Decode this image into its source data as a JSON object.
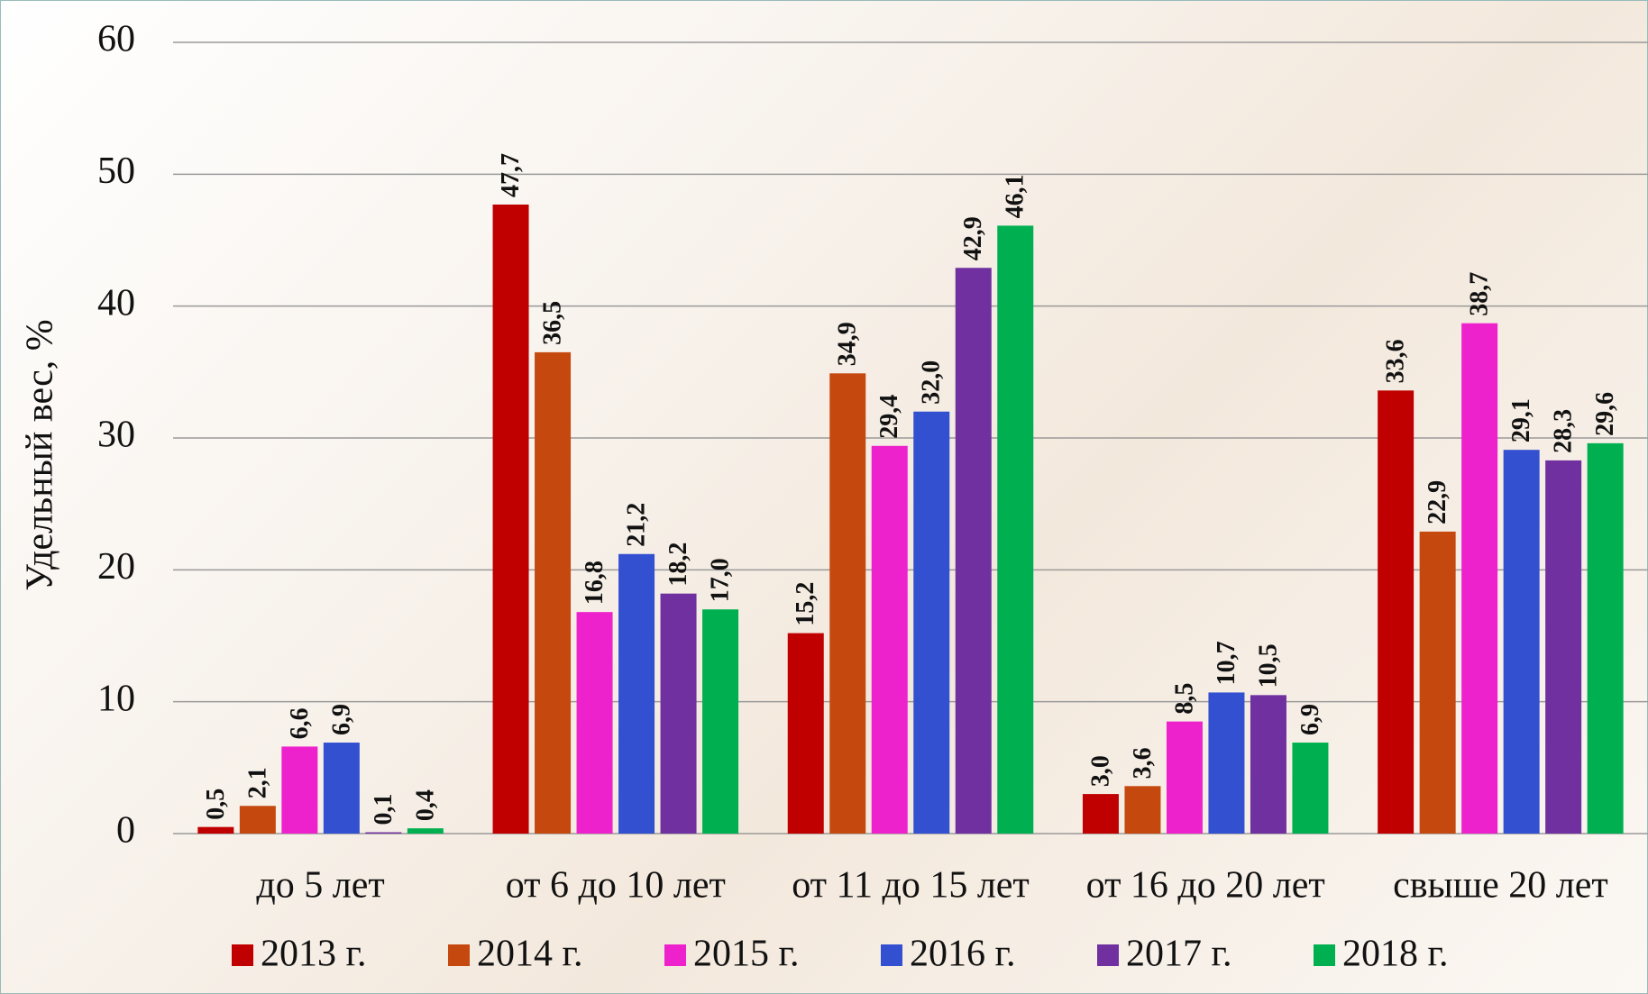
{
  "chart_data": {
    "type": "bar",
    "y_label": "Удельный вес, %",
    "categories": [
      "до 5 лет",
      "от 6 до 10 лет",
      "от 11 до 15 лет",
      "от 16 до 20 лет",
      "свыше 20 лет"
    ],
    "series": [
      {
        "name": "2013 г.",
        "color": "#c00000",
        "values": [
          0.5,
          47.7,
          15.2,
          3.0,
          33.6
        ],
        "value_labels": [
          "0,5",
          "47,7",
          "15,2",
          "3,0",
          "33,6"
        ]
      },
      {
        "name": "2014 г.",
        "color": "#c5480f",
        "values": [
          2.1,
          36.5,
          34.9,
          3.6,
          22.9
        ],
        "value_labels": [
          "2,1",
          "36,5",
          "34,9",
          "3,6",
          "22,9"
        ]
      },
      {
        "name": "2015 г.",
        "color": "#ee22cc",
        "values": [
          6.6,
          16.8,
          29.4,
          8.5,
          38.7
        ],
        "value_labels": [
          "6,6",
          "16,8",
          "29,4",
          "8,5",
          "38,7"
        ]
      },
      {
        "name": "2016 г.",
        "color": "#3350d0",
        "values": [
          6.9,
          21.2,
          32.0,
          10.7,
          29.1
        ],
        "value_labels": [
          "6,9",
          "21,2",
          "32,0",
          "10,7",
          "29,1"
        ]
      },
      {
        "name": "2017 г.",
        "color": "#7030a0",
        "values": [
          0.1,
          18.2,
          42.9,
          10.5,
          28.3
        ],
        "value_labels": [
          "0,1",
          "18,2",
          "42,9",
          "10,5",
          "28,3"
        ]
      },
      {
        "name": "2018 г.",
        "color": "#00b050",
        "values": [
          0.4,
          17.0,
          46.1,
          6.9,
          29.6
        ],
        "value_labels": [
          "0,4",
          "17,0",
          "46,1",
          "6,9",
          "29,6"
        ]
      }
    ],
    "ylim": [
      0,
      60
    ],
    "yticks": [
      0,
      10,
      20,
      30,
      40,
      50,
      60
    ],
    "grid": true
  }
}
